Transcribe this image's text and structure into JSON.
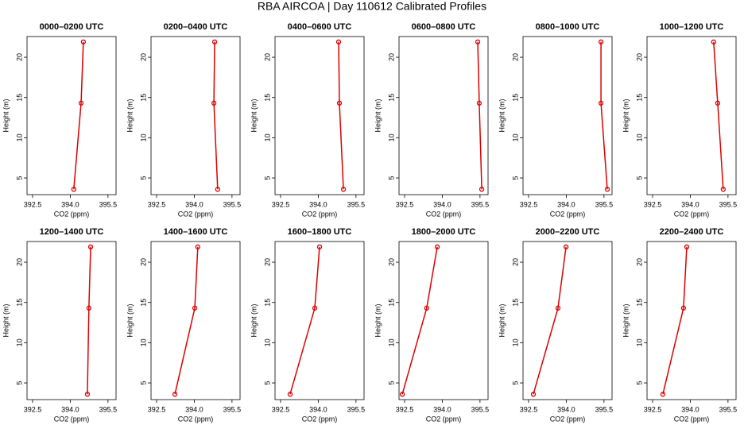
{
  "title": "RBA AIRCOA | Day 110612  Calibrated Profiles",
  "chart_data": [
    {
      "type": "line",
      "title": "0000–0200 UTC",
      "xlabel": "CO2 (ppm)",
      "ylabel": "Height (m)",
      "color": "#dd0000",
      "x": [
        394.14,
        394.43,
        394.52
      ],
      "values": [
        3.6,
        14.3,
        21.9
      ],
      "xlim": [
        392.28,
        395.82
      ],
      "ylim": [
        2.93,
        22.57
      ],
      "xticks": [
        392.5,
        {
          "value": 394,
          "label": "394.0"
        },
        395.5
      ],
      "yticks": [
        5,
        10,
        15,
        20
      ]
    },
    {
      "type": "line",
      "title": "0200–0400 UTC",
      "xlabel": "CO2 (ppm)",
      "ylabel": "Height (m)",
      "color": "#dd0000",
      "x": [
        394.93,
        394.78,
        394.81
      ],
      "values": [
        3.6,
        14.3,
        21.9
      ],
      "xlim": [
        392.28,
        395.82
      ],
      "ylim": [
        2.93,
        22.57
      ],
      "xticks": [
        392.5,
        {
          "value": 394,
          "label": "394.0"
        },
        395.5
      ],
      "yticks": [
        5,
        10,
        15,
        20
      ]
    },
    {
      "type": "line",
      "title": "0400–0600 UTC",
      "xlabel": "CO2 (ppm)",
      "ylabel": "Height (m)",
      "color": "#dd0000",
      "x": [
        395.0,
        394.84,
        394.81
      ],
      "values": [
        3.6,
        14.3,
        21.9
      ],
      "xlim": [
        392.28,
        395.82
      ],
      "ylim": [
        2.93,
        22.57
      ],
      "xticks": [
        392.5,
        {
          "value": 394,
          "label": "394.0"
        },
        395.5
      ],
      "yticks": [
        5,
        10,
        15,
        20
      ]
    },
    {
      "type": "line",
      "title": "0600–0800 UTC",
      "xlabel": "CO2 (ppm)",
      "ylabel": "Height (m)",
      "color": "#dd0000",
      "x": [
        395.57,
        395.47,
        395.41
      ],
      "values": [
        3.6,
        14.3,
        21.9
      ],
      "xlim": [
        392.28,
        395.82
      ],
      "ylim": [
        2.93,
        22.57
      ],
      "xticks": [
        392.5,
        {
          "value": 394,
          "label": "394.0"
        },
        395.5
      ],
      "yticks": [
        5,
        10,
        15,
        20
      ]
    },
    {
      "type": "line",
      "title": "0800–1000 UTC",
      "xlabel": "CO2 (ppm)",
      "ylabel": "Height (m)",
      "color": "#dd0000",
      "x": [
        395.63,
        395.38,
        395.38
      ],
      "values": [
        3.6,
        14.3,
        21.9
      ],
      "xlim": [
        392.28,
        395.82
      ],
      "ylim": [
        2.93,
        22.57
      ],
      "xticks": [
        392.5,
        {
          "value": 394,
          "label": "394.0"
        },
        395.5
      ],
      "yticks": [
        5,
        10,
        15,
        20
      ]
    },
    {
      "type": "line",
      "title": "1000–1200 UTC",
      "xlabel": "CO2 (ppm)",
      "ylabel": "Height (m)",
      "color": "#dd0000",
      "x": [
        395.31,
        395.09,
        394.93
      ],
      "values": [
        3.6,
        14.3,
        21.9
      ],
      "xlim": [
        392.28,
        395.82
      ],
      "ylim": [
        2.93,
        22.57
      ],
      "xticks": [
        392.5,
        {
          "value": 394,
          "label": "394.0"
        },
        395.5
      ],
      "yticks": [
        5,
        10,
        15,
        20
      ]
    },
    {
      "type": "line",
      "title": "1200–1400 UTC",
      "xlabel": "CO2 (ppm)",
      "ylabel": "Height (m)",
      "color": "#dd0000",
      "x": [
        394.68,
        394.74,
        394.81
      ],
      "values": [
        3.6,
        14.3,
        21.9
      ],
      "xlim": [
        392.28,
        395.82
      ],
      "ylim": [
        2.93,
        22.57
      ],
      "xticks": [
        392.5,
        {
          "value": 394,
          "label": "394.0"
        },
        395.5
      ],
      "yticks": [
        5,
        10,
        15,
        20
      ]
    },
    {
      "type": "line",
      "title": "1400–1600 UTC",
      "xlabel": "CO2 (ppm)",
      "ylabel": "Height (m)",
      "color": "#dd0000",
      "x": [
        393.23,
        394.02,
        394.14
      ],
      "values": [
        3.6,
        14.3,
        21.9
      ],
      "xlim": [
        392.28,
        395.82
      ],
      "ylim": [
        2.93,
        22.57
      ],
      "xticks": [
        392.5,
        {
          "value": 394,
          "label": "394.0"
        },
        395.5
      ],
      "yticks": [
        5,
        10,
        15,
        20
      ]
    },
    {
      "type": "line",
      "title": "1600–1800 UTC",
      "xlabel": "CO2 (ppm)",
      "ylabel": "Height (m)",
      "color": "#dd0000",
      "x": [
        392.88,
        393.86,
        394.05
      ],
      "values": [
        3.6,
        14.3,
        21.9
      ],
      "xlim": [
        392.28,
        395.82
      ],
      "ylim": [
        2.93,
        22.57
      ],
      "xticks": [
        392.5,
        {
          "value": 394,
          "label": "394.0"
        },
        395.5
      ],
      "yticks": [
        5,
        10,
        15,
        20
      ]
    },
    {
      "type": "line",
      "title": "1800–2000 UTC",
      "xlabel": "CO2 (ppm)",
      "ylabel": "Height (m)",
      "color": "#dd0000",
      "x": [
        392.41,
        393.38,
        393.8
      ],
      "values": [
        3.6,
        14.3,
        21.9
      ],
      "xlim": [
        392.28,
        395.82
      ],
      "ylim": [
        2.93,
        22.57
      ],
      "xticks": [
        392.5,
        {
          "value": 394,
          "label": "394.0"
        },
        395.5
      ],
      "yticks": [
        5,
        10,
        15,
        20
      ]
    },
    {
      "type": "line",
      "title": "2000–2200 UTC",
      "xlabel": "CO2 (ppm)",
      "ylabel": "Height (m)",
      "color": "#dd0000",
      "x": [
        392.69,
        393.67,
        393.99
      ],
      "values": [
        3.6,
        14.3,
        21.9
      ],
      "xlim": [
        392.28,
        395.82
      ],
      "ylim": [
        2.93,
        22.57
      ],
      "xticks": [
        392.5,
        {
          "value": 394,
          "label": "394.0"
        },
        395.5
      ],
      "yticks": [
        5,
        10,
        15,
        20
      ]
    },
    {
      "type": "line",
      "title": "2200–2400 UTC",
      "xlabel": "CO2 (ppm)",
      "ylabel": "Height (m)",
      "color": "#dd0000",
      "x": [
        392.91,
        393.73,
        393.86
      ],
      "values": [
        3.6,
        14.3,
        21.9
      ],
      "xlim": [
        392.28,
        395.82
      ],
      "ylim": [
        2.93,
        22.57
      ],
      "xticks": [
        392.5,
        {
          "value": 394,
          "label": "394.0"
        },
        395.5
      ],
      "yticks": [
        5,
        10,
        15,
        20
      ]
    }
  ]
}
